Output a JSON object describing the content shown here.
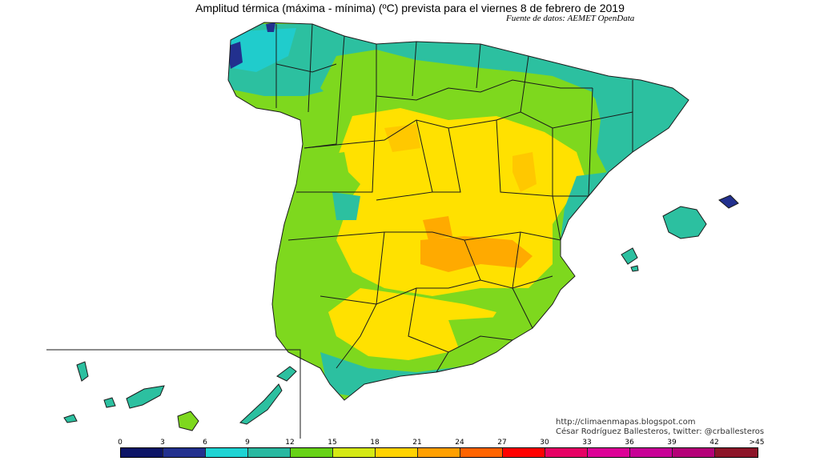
{
  "title": "Amplitud térmica (máxima - mínima) (ºC) prevista para el viernes 8 de febrero de 2019",
  "source": "Fuente de datos: AEMET OpenData",
  "credits": {
    "line1": "http://climaenmapas.blogspot.com",
    "line2": "César Rodríguez Ballesteros, twitter: @crballesteros"
  },
  "legend": {
    "ticks": [
      "0",
      "3",
      "6",
      "9",
      "12",
      "15",
      "18",
      "21",
      "24",
      "27",
      "30",
      "33",
      "36",
      "39",
      "42",
      ">45"
    ],
    "colors": [
      "#0c1466",
      "#22308e",
      "#1ed3d3",
      "#28b8a0",
      "#66d216",
      "#d4e814",
      "#ffd200",
      "#ff9f00",
      "#ff6400",
      "#ff0000",
      "#e60064",
      "#dc0096",
      "#c80096",
      "#b40078",
      "#8c1428"
    ]
  },
  "palette": {
    "green": "#7ed81e",
    "teal": "#2cc0a0",
    "cyan": "#20cccc",
    "yellow": "#ffe100",
    "gold": "#ffc800",
    "orange": "#ffaa00",
    "navy": "#22308e"
  }
}
